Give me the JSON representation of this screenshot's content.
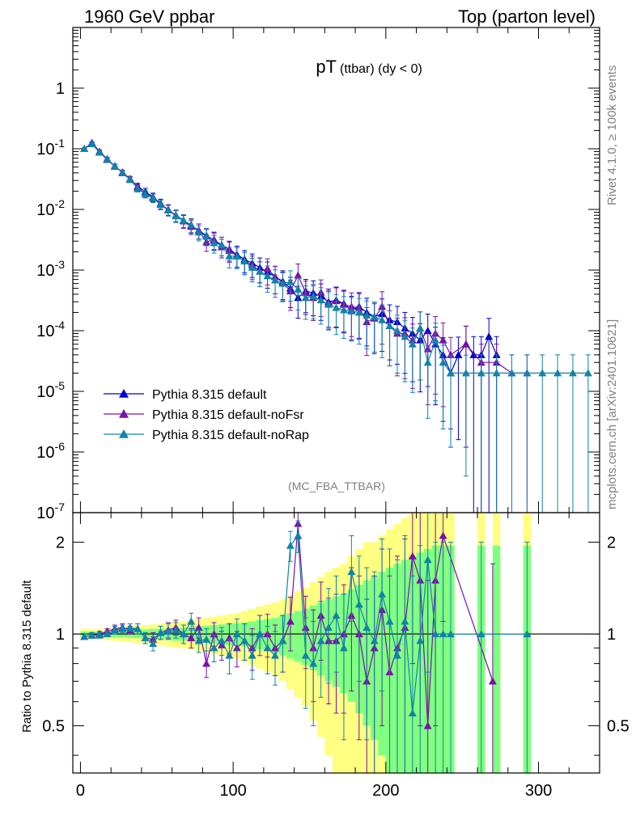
{
  "header": {
    "left_title": "1960 GeV ppbar",
    "right_title": "Top (parton level)"
  },
  "side": {
    "rivet_text": "Rivet 4.1.0, ≥ 100k events",
    "mcplots_text": "mcplots.cern.ch [arXiv:2401.10621]"
  },
  "colors": {
    "default": "#0000cc",
    "noFsr": "#7a10a8",
    "noRap": "#1283a8",
    "band_yellow": "#ffff80",
    "band_green": "#80ff80"
  },
  "chart_data": [
    {
      "type": "line",
      "title": "pT",
      "title_sub": "(ttbar) (dy < 0)",
      "watermark": "(MC_FBA_TTBAR)",
      "yscale": "log",
      "xlim": [
        -5,
        340
      ],
      "ylim": [
        1e-07,
        10
      ],
      "ytick_labels": [
        "1",
        "10^-1",
        "10^-2",
        "10^-3",
        "10^-4",
        "10^-5",
        "10^-6",
        "10^-7"
      ],
      "legend": [
        "Pythia 8.315 default",
        "Pythia 8.315 default-noFsr",
        "Pythia 8.315 default-noRap"
      ],
      "legend_position": "bottom-left",
      "series": [
        {
          "name": "Pythia 8.315 default",
          "x": [
            2.5,
            7.5,
            12.5,
            17.5,
            22.5,
            27.5,
            32.5,
            37.5,
            42.5,
            47.5,
            52.5,
            57.5,
            62.5,
            67.5,
            72.5,
            77.5,
            82.5,
            87.5,
            92.5,
            97.5,
            102.5,
            107.5,
            112.5,
            117.5,
            122.5,
            127.5,
            132.5,
            137.5,
            142.5,
            147.5,
            152.5,
            157.5,
            162.5,
            167.5,
            172.5,
            177.5,
            182.5,
            187.5,
            192.5,
            197.5,
            202.5,
            207.5,
            212.5,
            217.5,
            222.5,
            227.5,
            232.5,
            237.5,
            242.5,
            247.5,
            252.5,
            257.5,
            262.5,
            267.5,
            272.5
          ],
          "y": [
            0.1,
            0.125,
            0.09,
            0.068,
            0.052,
            0.04,
            0.031,
            0.024,
            0.0195,
            0.016,
            0.0125,
            0.0098,
            0.008,
            0.0066,
            0.0055,
            0.0045,
            0.0037,
            0.0031,
            0.0026,
            0.0022,
            0.0018,
            0.0015,
            0.0013,
            0.0011,
            0.00093,
            0.00078,
            0.00065,
            0.0005,
            0.00035,
            0.00045,
            0.00042,
            0.00037,
            0.0003,
            0.00032,
            0.00028,
            0.00022,
            0.00025,
            0.0002,
            0.00017,
            0.00019,
            0.00015,
            0.00014,
            0.00011,
            9e-05,
            7e-05,
            0.0001,
            6e-05,
            4e-05,
            2e-05,
            4e-05,
            6e-05,
            4e-05,
            4e-05,
            8e-05,
            4e-05
          ],
          "err": [
            0.03,
            0.03,
            0.05,
            0.06,
            0.07,
            0.09,
            0.1,
            0.12,
            0.14,
            0.16,
            0.18,
            0.2,
            0.22,
            0.24,
            0.26,
            0.28,
            0.3,
            0.32,
            0.34,
            0.36,
            0.38,
            0.4,
            0.42,
            0.44,
            0.46,
            0.48,
            0.5,
            0.52,
            0.54,
            0.56,
            0.58,
            0.6,
            0.62,
            0.64,
            0.66,
            0.68,
            0.7,
            0.72,
            0.74,
            0.76,
            0.78,
            0.8,
            0.82,
            0.84,
            0.86,
            0.88,
            0.9,
            0.92,
            0.94,
            0.96,
            0.98,
            1,
            1,
            1,
            1
          ]
        },
        {
          "name": "Pythia 8.315 default-noFsr",
          "x": [
            2.5,
            7.5,
            12.5,
            17.5,
            22.5,
            27.5,
            32.5,
            37.5,
            42.5,
            47.5,
            52.5,
            57.5,
            62.5,
            67.5,
            72.5,
            77.5,
            82.5,
            87.5,
            92.5,
            97.5,
            102.5,
            107.5,
            112.5,
            117.5,
            122.5,
            127.5,
            132.5,
            137.5,
            142.5,
            147.5,
            152.5,
            157.5,
            162.5,
            167.5,
            172.5,
            177.5,
            182.5,
            187.5,
            192.5,
            197.5,
            202.5,
            207.5,
            212.5,
            217.5,
            222.5,
            227.5,
            232.5,
            237.5,
            242.5,
            252.5,
            262.5,
            272.5,
            282.5,
            292.5
          ],
          "y": [
            0.1,
            0.12,
            0.088,
            0.066,
            0.051,
            0.041,
            0.032,
            0.023,
            0.018,
            0.0155,
            0.012,
            0.01,
            0.0079,
            0.0064,
            0.0052,
            0.0045,
            0.0029,
            0.0032,
            0.0024,
            0.0021,
            0.0017,
            0.0014,
            0.0012,
            0.00095,
            0.00105,
            0.00078,
            0.00062,
            0.00045,
            0.00082,
            0.00042,
            0.00035,
            0.00043,
            0.00028,
            0.00031,
            0.00027,
            0.00025,
            0.00024,
            0.00014,
            0.00016,
            0.00025,
            0.00012,
            9e-05,
            9e-05,
            7e-05,
            0.00011,
            5e-05,
            9e-05,
            7e-05,
            4e-05,
            6e-05,
            3e-05,
            3e-05,
            2e-05,
            2e-05
          ],
          "err": [
            0.03,
            0.03,
            0.05,
            0.06,
            0.07,
            0.09,
            0.1,
            0.12,
            0.14,
            0.16,
            0.18,
            0.2,
            0.22,
            0.24,
            0.26,
            0.28,
            0.3,
            0.32,
            0.34,
            0.36,
            0.38,
            0.4,
            0.42,
            0.44,
            0.46,
            0.48,
            0.5,
            0.52,
            0.54,
            0.56,
            0.58,
            0.6,
            0.62,
            0.64,
            0.66,
            0.68,
            0.7,
            0.72,
            0.74,
            0.76,
            0.78,
            0.8,
            0.82,
            0.84,
            0.86,
            0.88,
            0.9,
            0.92,
            0.94,
            0.98,
            1,
            1,
            1,
            1
          ]
        },
        {
          "name": "Pythia 8.315 default-noRap",
          "x": [
            2.5,
            7.5,
            12.5,
            17.5,
            22.5,
            27.5,
            32.5,
            37.5,
            42.5,
            47.5,
            52.5,
            57.5,
            62.5,
            67.5,
            72.5,
            77.5,
            82.5,
            87.5,
            92.5,
            97.5,
            102.5,
            107.5,
            112.5,
            117.5,
            122.5,
            127.5,
            132.5,
            137.5,
            142.5,
            147.5,
            152.5,
            157.5,
            162.5,
            167.5,
            172.5,
            177.5,
            182.5,
            187.5,
            192.5,
            197.5,
            202.5,
            207.5,
            212.5,
            217.5,
            222.5,
            227.5,
            232.5,
            237.5,
            242.5,
            252.5,
            262.5,
            272.5,
            282.5,
            292.5,
            302.5,
            312.5,
            322.5,
            332.5
          ],
          "y": [
            0.1,
            0.12,
            0.087,
            0.067,
            0.052,
            0.04,
            0.031,
            0.022,
            0.018,
            0.0155,
            0.012,
            0.0097,
            0.0078,
            0.0066,
            0.0056,
            0.0042,
            0.0036,
            0.0028,
            0.0026,
            0.0017,
            0.0017,
            0.0014,
            0.0011,
            0.00095,
            0.0008,
            0.00068,
            0.0006,
            0.00064,
            0.00048,
            0.00035,
            0.00037,
            0.00032,
            0.00027,
            0.00024,
            0.00022,
            0.00021,
            0.0002,
            0.00018,
            0.00017,
            0.00015,
            0.00012,
            0.0001,
            8e-05,
            6e-05,
            0.00011,
            3e-05,
            7e-05,
            3e-05,
            2e-05,
            2e-05,
            2e-05,
            2e-05,
            2e-05,
            2e-05,
            2e-05,
            2e-05,
            2e-05,
            2e-05
          ],
          "err": [
            0.03,
            0.03,
            0.05,
            0.06,
            0.07,
            0.09,
            0.1,
            0.12,
            0.14,
            0.16,
            0.18,
            0.2,
            0.22,
            0.24,
            0.26,
            0.28,
            0.3,
            0.32,
            0.34,
            0.36,
            0.38,
            0.4,
            0.42,
            0.44,
            0.46,
            0.48,
            0.5,
            0.52,
            0.54,
            0.56,
            0.58,
            0.6,
            0.62,
            0.64,
            0.66,
            0.68,
            0.7,
            0.72,
            0.74,
            0.76,
            0.78,
            0.8,
            0.82,
            0.84,
            0.86,
            0.88,
            0.9,
            0.92,
            0.94,
            0.98,
            1,
            1,
            1,
            1,
            1,
            1,
            1,
            1
          ]
        }
      ]
    },
    {
      "type": "line",
      "title": "ratio",
      "ylabel": "Ratio to Pythia 8.315 default",
      "yscale": "log",
      "xlim": [
        -5,
        340
      ],
      "ylim": [
        0.35,
        2.5
      ],
      "xticks": [
        0,
        100,
        200,
        300
      ],
      "yticks": [
        0.5,
        1,
        2
      ],
      "reference_line": 1,
      "bands": {
        "x": [
          2.5,
          7.5,
          12.5,
          17.5,
          22.5,
          27.5,
          32.5,
          37.5,
          42.5,
          47.5,
          52.5,
          57.5,
          62.5,
          67.5,
          72.5,
          77.5,
          82.5,
          87.5,
          92.5,
          97.5,
          102.5,
          107.5,
          112.5,
          117.5,
          122.5,
          127.5,
          132.5,
          137.5,
          142.5,
          147.5,
          152.5,
          157.5,
          162.5,
          167.5,
          172.5,
          177.5,
          182.5,
          187.5,
          192.5,
          197.5,
          202.5,
          207.5,
          212.5,
          217.5,
          222.5,
          227.5,
          232.5,
          237.5,
          242.5,
          262.5,
          272.5,
          292.5
        ],
        "green_half": [
          0.02,
          0.02,
          0.02,
          0.02,
          0.025,
          0.025,
          0.03,
          0.03,
          0.035,
          0.04,
          0.04,
          0.045,
          0.05,
          0.05,
          0.055,
          0.06,
          0.065,
          0.07,
          0.075,
          0.08,
          0.085,
          0.09,
          0.1,
          0.11,
          0.12,
          0.13,
          0.15,
          0.17,
          0.19,
          0.21,
          0.24,
          0.27,
          0.3,
          0.33,
          0.36,
          0.4,
          0.45,
          0.5,
          0.55,
          0.6,
          0.65,
          0.7,
          0.75,
          0.8,
          0.85,
          0.9,
          0.95,
          0.95,
          0.95,
          0.95,
          0.95,
          0.95
        ],
        "yellow_half": [
          0.04,
          0.04,
          0.04,
          0.045,
          0.05,
          0.055,
          0.06,
          0.065,
          0.07,
          0.075,
          0.08,
          0.09,
          0.1,
          0.1,
          0.11,
          0.12,
          0.13,
          0.14,
          0.15,
          0.16,
          0.17,
          0.19,
          0.21,
          0.23,
          0.25,
          0.27,
          0.3,
          0.34,
          0.38,
          0.42,
          0.48,
          0.54,
          0.6,
          0.65,
          0.7,
          0.8,
          0.9,
          1,
          1,
          1.1,
          1.2,
          1.3,
          1.4,
          1.5,
          1.6,
          1.7,
          1.8,
          1.8,
          1.8,
          1.8,
          1.8,
          1.8
        ]
      },
      "series": [
        {
          "name": "Pythia 8.315 default-noFsr",
          "x": [
            2.5,
            7.5,
            12.5,
            17.5,
            22.5,
            27.5,
            32.5,
            37.5,
            42.5,
            47.5,
            52.5,
            57.5,
            62.5,
            67.5,
            72.5,
            77.5,
            82.5,
            87.5,
            92.5,
            97.5,
            102.5,
            107.5,
            112.5,
            117.5,
            122.5,
            127.5,
            132.5,
            137.5,
            142.5,
            147.5,
            152.5,
            157.5,
            162.5,
            167.5,
            172.5,
            177.5,
            182.5,
            187.5,
            192.5,
            197.5,
            202.5,
            207.5,
            212.5,
            217.5,
            222.5,
            227.5,
            232.5,
            237.5,
            270
          ],
          "y": [
            0.98,
            0.99,
            1.0,
            1.02,
            1.04,
            1.05,
            1.03,
            1.04,
            0.97,
            0.96,
            1.01,
            1.03,
            1.05,
            1.0,
            0.97,
            1.05,
            0.8,
            1.0,
            0.92,
            0.97,
            0.9,
            0.95,
            0.9,
            1.0,
            1.0,
            0.9,
            0.95,
            1.1,
            2.3,
            1.05,
            0.9,
            1.15,
            0.95,
            0.95,
            1.0,
            1.15,
            1.0,
            0.7,
            0.9,
            1.2,
            0.75,
            0.9,
            1.05,
            1.8,
            1.5,
            0.5,
            1.5,
            2.1,
            0.7
          ],
          "err": [
            0.02,
            0.02,
            0.02,
            0.02,
            0.03,
            0.03,
            0.03,
            0.04,
            0.04,
            0.05,
            0.05,
            0.06,
            0.06,
            0.07,
            0.07,
            0.08,
            0.08,
            0.09,
            0.1,
            0.11,
            0.12,
            0.13,
            0.14,
            0.15,
            0.16,
            0.17,
            0.2,
            0.22,
            0.25,
            0.28,
            0.3,
            0.33,
            0.36,
            0.4,
            0.45,
            0.5,
            0.55,
            0.6,
            0.65,
            0.7,
            0.8,
            0.9,
            1,
            1,
            1,
            1,
            1,
            1,
            1
          ]
        },
        {
          "name": "Pythia 8.315 default-noRap",
          "x": [
            2.5,
            7.5,
            12.5,
            17.5,
            22.5,
            27.5,
            32.5,
            37.5,
            42.5,
            47.5,
            52.5,
            57.5,
            62.5,
            67.5,
            72.5,
            77.5,
            82.5,
            87.5,
            92.5,
            97.5,
            102.5,
            107.5,
            112.5,
            117.5,
            122.5,
            127.5,
            132.5,
            137.5,
            142.5,
            147.5,
            152.5,
            157.5,
            162.5,
            167.5,
            172.5,
            177.5,
            182.5,
            187.5,
            192.5,
            197.5,
            202.5,
            207.5,
            212.5,
            217.5,
            222.5,
            227.5,
            232.5,
            237.5,
            242.5,
            262.5,
            292.5
          ],
          "y": [
            0.98,
            0.99,
            0.99,
            1.0,
            1.03,
            1.04,
            1.05,
            1.04,
            0.97,
            0.93,
            1.01,
            1.02,
            1.03,
            1.0,
            1.1,
            0.95,
            0.96,
            0.9,
            0.95,
            0.85,
            1.0,
            0.95,
            0.85,
            1.0,
            0.9,
            0.85,
            0.95,
            1.95,
            2.1,
            0.85,
            0.8,
            0.95,
            1.05,
            1.15,
            0.9,
            1.6,
            1.25,
            1.05,
            0.95,
            1.35,
            1.1,
            0.85,
            1.1,
            0.55,
            0.95,
            1.75,
            1.0,
            1.0,
            1.0,
            1.0,
            1.0
          ],
          "err": [
            0.02,
            0.02,
            0.02,
            0.02,
            0.03,
            0.03,
            0.03,
            0.04,
            0.04,
            0.05,
            0.05,
            0.06,
            0.06,
            0.07,
            0.07,
            0.08,
            0.08,
            0.09,
            0.1,
            0.11,
            0.12,
            0.13,
            0.14,
            0.15,
            0.16,
            0.17,
            0.2,
            0.22,
            0.25,
            0.28,
            0.3,
            0.33,
            0.36,
            0.4,
            0.45,
            0.5,
            0.55,
            0.6,
            0.65,
            0.7,
            0.8,
            0.9,
            1,
            1,
            1,
            1,
            1,
            1,
            1,
            1,
            1
          ]
        }
      ]
    }
  ]
}
